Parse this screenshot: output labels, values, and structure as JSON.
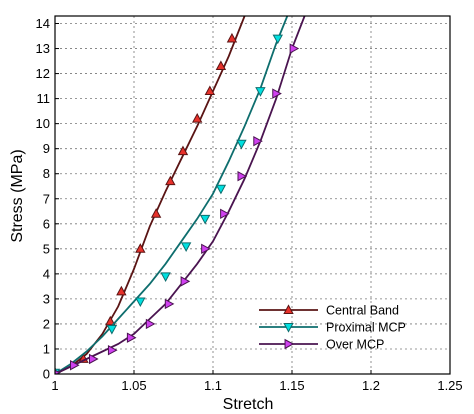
{
  "chart_data": {
    "type": "line",
    "xlabel": "Stretch",
    "ylabel": "Stress (MPa)",
    "xlim": [
      1,
      1.25
    ],
    "ylim": [
      0,
      14.3
    ],
    "x_ticks": [
      "1",
      "1.05",
      "1.1",
      "1.15",
      "1.2",
      "1.25"
    ],
    "x_tick_values": [
      1,
      1.05,
      1.1,
      1.15,
      1.2,
      1.25
    ],
    "y_ticks": [
      "0",
      "1",
      "2",
      "3",
      "4",
      "5",
      "6",
      "7",
      "8",
      "9",
      "10",
      "11",
      "12",
      "13",
      "14"
    ],
    "y_tick_values": [
      0,
      1,
      2,
      3,
      4,
      5,
      6,
      7,
      8,
      9,
      10,
      11,
      12,
      13,
      14
    ],
    "grid": true,
    "legend_position": "bottom-right",
    "series": [
      {
        "name": "Central Band",
        "color": "#5a1414",
        "marker": "triangle-up",
        "marker_color": "#e8312a",
        "line": [
          [
            1,
            0
          ],
          [
            1.01,
            0.3
          ],
          [
            1.02,
            0.8
          ],
          [
            1.03,
            1.6
          ],
          [
            1.04,
            2.7
          ],
          [
            1.05,
            4.2
          ],
          [
            1.06,
            5.9
          ],
          [
            1.07,
            7.3
          ],
          [
            1.08,
            8.6
          ],
          [
            1.09,
            9.9
          ],
          [
            1.1,
            11.3
          ],
          [
            1.11,
            12.7
          ],
          [
            1.12,
            14.3
          ]
        ],
        "markers": [
          [
            1.0,
            0.05
          ],
          [
            1.018,
            0.6
          ],
          [
            1.035,
            2.1
          ],
          [
            1.042,
            3.3
          ],
          [
            1.054,
            5.0
          ],
          [
            1.064,
            6.4
          ],
          [
            1.073,
            7.7
          ],
          [
            1.081,
            8.9
          ],
          [
            1.09,
            10.2
          ],
          [
            1.098,
            11.3
          ],
          [
            1.105,
            12.3
          ],
          [
            1.112,
            13.4
          ]
        ]
      },
      {
        "name": "Proximal MCP",
        "color": "#0e6e6e",
        "marker": "triangle-down",
        "marker_color": "#00e0e0",
        "line": [
          [
            1,
            0
          ],
          [
            1.01,
            0.4
          ],
          [
            1.02,
            0.9
          ],
          [
            1.03,
            1.5
          ],
          [
            1.04,
            2.2
          ],
          [
            1.05,
            2.9
          ],
          [
            1.06,
            3.6
          ],
          [
            1.07,
            4.4
          ],
          [
            1.08,
            5.3
          ],
          [
            1.09,
            6.2
          ],
          [
            1.1,
            7.2
          ],
          [
            1.11,
            8.5
          ],
          [
            1.12,
            9.9
          ],
          [
            1.13,
            11.4
          ],
          [
            1.14,
            13.2
          ],
          [
            1.147,
            14.3
          ]
        ],
        "markers": [
          [
            1.0,
            0.05
          ],
          [
            1.036,
            1.8
          ],
          [
            1.054,
            2.9
          ],
          [
            1.07,
            3.9
          ],
          [
            1.083,
            5.1
          ],
          [
            1.095,
            6.2
          ],
          [
            1.105,
            7.4
          ],
          [
            1.118,
            9.2
          ],
          [
            1.13,
            11.3
          ],
          [
            1.141,
            13.4
          ]
        ]
      },
      {
        "name": "Over MCP",
        "color": "#4a1450",
        "marker": "triangle-right",
        "marker_color": "#d040f0",
        "line": [
          [
            1,
            0
          ],
          [
            1.01,
            0.3
          ],
          [
            1.02,
            0.6
          ],
          [
            1.03,
            0.9
          ],
          [
            1.04,
            1.2
          ],
          [
            1.05,
            1.6
          ],
          [
            1.06,
            2.2
          ],
          [
            1.07,
            2.8
          ],
          [
            1.08,
            3.6
          ],
          [
            1.09,
            4.4
          ],
          [
            1.1,
            5.3
          ],
          [
            1.11,
            6.5
          ],
          [
            1.12,
            7.8
          ],
          [
            1.13,
            9.3
          ],
          [
            1.14,
            11.0
          ],
          [
            1.15,
            13.0
          ],
          [
            1.158,
            14.3
          ]
        ],
        "markers": [
          [
            1.0,
            0.05
          ],
          [
            1.012,
            0.35
          ],
          [
            1.024,
            0.6
          ],
          [
            1.036,
            0.95
          ],
          [
            1.048,
            1.45
          ],
          [
            1.06,
            2.0
          ],
          [
            1.072,
            2.8
          ],
          [
            1.082,
            3.7
          ],
          [
            1.095,
            5.0
          ],
          [
            1.107,
            6.4
          ],
          [
            1.118,
            7.9
          ],
          [
            1.128,
            9.3
          ],
          [
            1.14,
            11.2
          ],
          [
            1.151,
            13.0
          ]
        ]
      }
    ]
  }
}
